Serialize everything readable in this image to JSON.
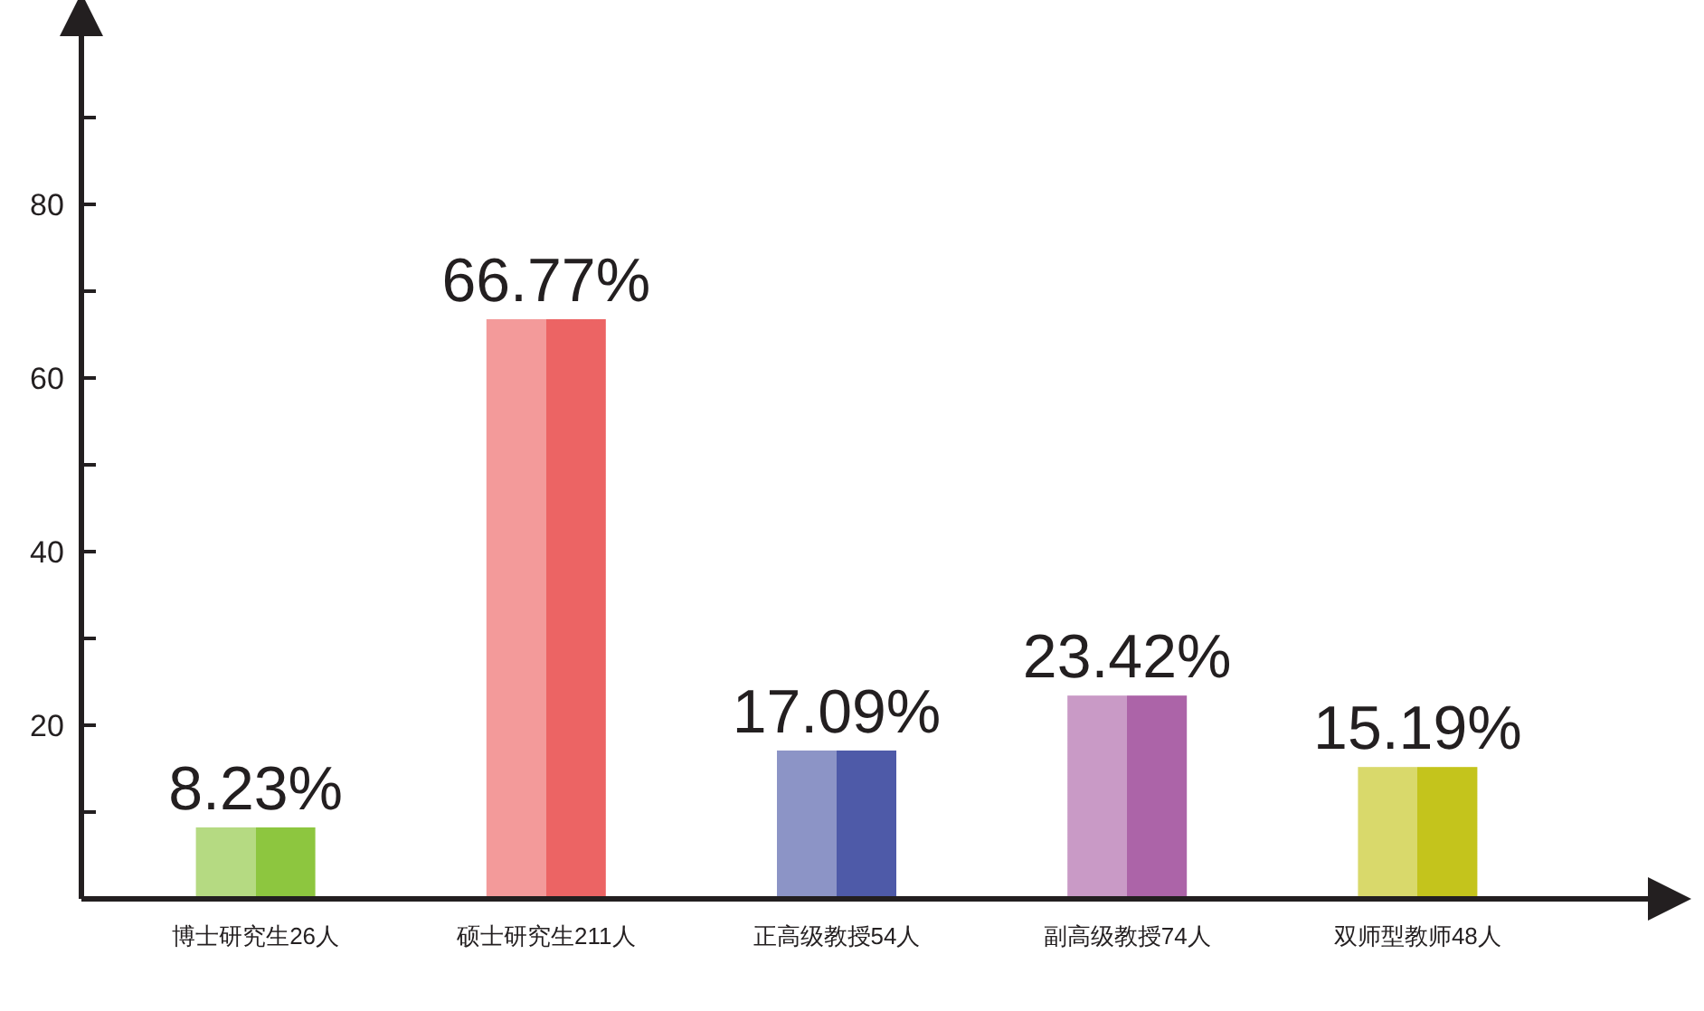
{
  "chart_data": {
    "type": "bar",
    "categories": [
      "博士研究生26人",
      "硕士研究生211人",
      "正高级教授54人",
      "副高级教授74人",
      "双师型教师48人"
    ],
    "values": [
      8.23,
      66.77,
      17.09,
      23.42,
      15.19
    ],
    "value_labels": [
      "8.23%",
      "66.77%",
      "17.09%",
      "23.42%",
      "15.19%"
    ],
    "colors": [
      "#8dc63f",
      "#ec6464",
      "#4e5aa8",
      "#ac64a8",
      "#c4c41c"
    ],
    "ylim": [
      0,
      100
    ],
    "yticks": [
      {
        "value": 10,
        "label": null
      },
      20,
      {
        "value": 30,
        "label": null
      },
      40,
      {
        "value": 50,
        "label": null
      },
      60,
      {
        "value": 70,
        "label": null
      },
      80,
      {
        "value": 90,
        "label": null
      }
    ],
    "grid": false
  }
}
